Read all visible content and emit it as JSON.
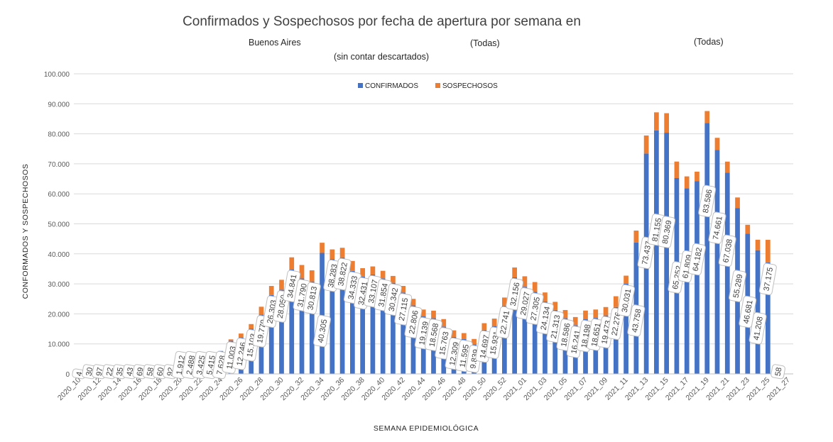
{
  "title": "Confirmados y Sospechosos por fecha de apertura por semana en",
  "filter1": "Buenos Aires",
  "filter2": "(Todas)",
  "filter3": "(Todas)",
  "note": "(sin contar descartados)",
  "colors": {
    "confirmados": "#4472C4",
    "sospechosos": "#ED7D31",
    "grid": "#D9D9D9"
  },
  "chart_data": {
    "type": "bar",
    "stacked": true,
    "xlabel": "SEMANA  EPIDEMIOLÓGICA",
    "ylabel": "CONFORMADOS  Y SOSPECHOSOS",
    "ylim": [
      0,
      100000
    ],
    "yticks": [
      "0",
      "10.000",
      "20.000",
      "30.000",
      "40.000",
      "50.000",
      "60.000",
      "70.000",
      "80.000",
      "90.000",
      "100.000"
    ],
    "grid": true,
    "legend_position": "top",
    "categories": [
      "2020_10",
      "2020_11",
      "2020_12",
      "2020_13",
      "2020_14",
      "2020_15",
      "2020_16",
      "2020_17",
      "2020_18",
      "2020_19",
      "2020_20",
      "2020_21",
      "2020_22",
      "2020_23",
      "2020_24",
      "2020_25",
      "2020_26",
      "2020_27",
      "2020_28",
      "2020_29",
      "2020_30",
      "2020_31",
      "2020_32",
      "2020_33",
      "2020_34",
      "2020_35",
      "2020_36",
      "2020_37",
      "2020_38",
      "2020_39",
      "2020_40",
      "2020_41",
      "2020_42",
      "2020_43",
      "2020_44",
      "2020_45",
      "2020_46",
      "2020_47",
      "2020_48",
      "2020_49",
      "2020_50",
      "2020_51",
      "2020_52",
      "2020_53",
      "2021_01",
      "2021_02",
      "2021_03",
      "2021_04",
      "2021_05",
      "2021_06",
      "2021_07",
      "2021_08",
      "2021_09",
      "2021_10",
      "2021_11",
      "2021_12",
      "2021_13",
      "2021_14",
      "2021_15",
      "2021_16",
      "2021_17",
      "2021_18",
      "2021_19",
      "2021_20",
      "2021_21",
      "2021_22",
      "2021_23",
      "2021_24",
      "2021_25",
      "2021_26",
      "2021_27"
    ],
    "xtick_labels": [
      "2020_10",
      "2020_12",
      "2020_14",
      "2020_16",
      "2020_18",
      "2020_20",
      "2020_22",
      "2020_24",
      "2020_26",
      "2020_28",
      "2020_30",
      "2020_32",
      "2020_34",
      "2020_36",
      "2020_38",
      "2020_40",
      "2020_42",
      "2020_44",
      "2020_46",
      "2020_48",
      "2020_50",
      "2020_52",
      "2021_01",
      "2021_03",
      "2021_05",
      "2021_07",
      "2021_09",
      "2021_11",
      "2021_13",
      "2021_15",
      "2021_17",
      "2021_19",
      "2021_21",
      "2021_23",
      "2021_25",
      "2021_27"
    ],
    "series": [
      {
        "name": "CONFIRMADOS",
        "values": [
          4,
          30,
          97,
          22,
          35,
          43,
          69,
          58,
          60,
          92,
          1912,
          2488,
          3425,
          5415,
          7628,
          11003,
          12246,
          15103,
          19779,
          26303,
          28050,
          34841,
          31790,
          30813,
          40305,
          38283,
          38822,
          34333,
          32431,
          33107,
          31854,
          30342,
          27115,
          22806,
          19139,
          18568,
          15763,
          12309,
          11595,
          9839,
          14697,
          15931,
          22741,
          32156,
          29027,
          27305,
          24134,
          21313,
          18586,
          16241,
          18198,
          18651,
          19473,
          22276,
          30031,
          43758,
          73437,
          81155,
          80369,
          65252,
          61809,
          64182,
          83586,
          74661,
          67038,
          55289,
          46681,
          41208,
          37175,
          58,
          0
        ]
      },
      {
        "name": "SOSPECHOSOS",
        "values": [
          0,
          0,
          0,
          0,
          0,
          0,
          0,
          0,
          0,
          0,
          0,
          0,
          0,
          0,
          0,
          500,
          1200,
          1500,
          2600,
          3000,
          3300,
          4000,
          4500,
          3700,
          3400,
          3200,
          3200,
          3300,
          2800,
          2700,
          2500,
          2300,
          2200,
          2200,
          2300,
          2500,
          2500,
          2200,
          2000,
          1800,
          2200,
          2500,
          2700,
          3300,
          3500,
          3300,
          3000,
          2700,
          2700,
          2700,
          2900,
          2800,
          2800,
          3600,
          2700,
          4000,
          6000,
          6000,
          6500,
          5500,
          4000,
          3200,
          4000,
          4000,
          3700,
          3500,
          3000,
          3500,
          7500,
          0,
          0
        ]
      }
    ],
    "data_labels": [
      "4",
      "30",
      "97",
      "22",
      "35",
      "43",
      "69",
      "58",
      "60",
      "92",
      "1.912",
      "2.488",
      "3.425",
      "5.415",
      "7.628",
      "11.003",
      "12.246",
      "15.103",
      "19.779",
      "26.303",
      "28.050",
      "34.841",
      "31.790",
      "30.813",
      "40.305",
      "38.283",
      "38.822",
      "34.333",
      "32.431",
      "33.107",
      "31.854",
      "30.342",
      "27.115",
      "22.806",
      "19.139",
      "18.568",
      "15.763",
      "12.309",
      "11.595",
      "9.839",
      "14.697",
      "15.931",
      "22.741",
      "32.156",
      "29.027",
      "27.305",
      "24.134",
      "21.313",
      "18.586",
      "16.241",
      "18.198",
      "18.651",
      "19.473",
      "22.276",
      "30.031",
      "43.758",
      "73.437",
      "81.155",
      "80.369",
      "65.252",
      "61.809",
      "64.182",
      "83.586",
      "74.661",
      "67.038",
      "55.289",
      "46.681",
      "41.208",
      "37.175",
      "58",
      ""
    ]
  }
}
